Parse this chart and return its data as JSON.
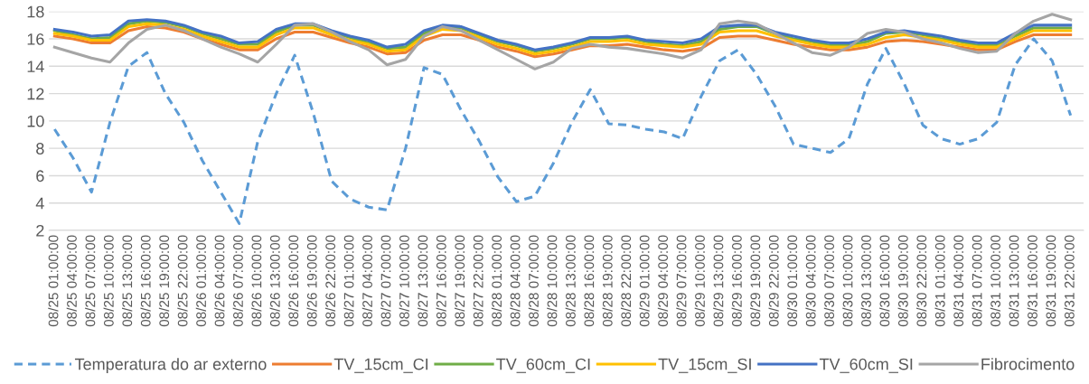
{
  "chart_data": {
    "type": "line",
    "categories": [
      "08/25 01:00:00",
      "08/25 04:00:00",
      "08/25 07:00:00",
      "08/25 10:00:00",
      "08/25 13:00:00",
      "08/25 16:00:00",
      "08/25 19:00:00",
      "08/25 22:00:00",
      "08/26 01:00:00",
      "08/26 04:00:00",
      "08/26 07:00:00",
      "08/26 10:00:00",
      "08/26 13:00:00",
      "08/26 16:00:00",
      "08/26 19:00:00",
      "08/26 22:00:00",
      "08/27 01:00:00",
      "08/27 04:00:00",
      "08/27 07:00:00",
      "08/27 10:00:00",
      "08/27 13:00:00",
      "08/27 16:00:00",
      "08/27 19:00:00",
      "08/27 22:00:00",
      "08/28 01:00:00",
      "08/28 04:00:00",
      "08/28 07:00:00",
      "08/28 10:00:00",
      "08/28 13:00:00",
      "08/28 16:00:00",
      "08/28 19:00:00",
      "08/28 22:00:00",
      "08/29 01:00:00",
      "08/29 04:00:00",
      "08/29 07:00:00",
      "08/29 10:00:00",
      "08/29 13:00:00",
      "08/29 16:00:00",
      "08/29 19:00:00",
      "08/29 22:00:00",
      "08/30 01:00:00",
      "08/30 04:00:00",
      "08/30 07:00:00",
      "08/30 10:00:00",
      "08/30 13:00:00",
      "08/30 16:00:00",
      "08/30 19:00:00",
      "08/30 22:00:00",
      "08/31 01:00:00",
      "08/31 04:00:00",
      "08/31 07:00:00",
      "08/31 10:00:00",
      "08/31 13:00:00",
      "08/31 16:00:00",
      "08/31 19:00:00",
      "08/31 22:00:00"
    ],
    "series": [
      {
        "name": "Temperatura do ar externo",
        "color": "#5b9bd5",
        "line_style": "dashed",
        "values": [
          9.4,
          7.3,
          4.8,
          9.9,
          14.0,
          15.0,
          12.0,
          9.9,
          7.1,
          4.8,
          2.5,
          8.5,
          12.0,
          14.8,
          10.6,
          5.6,
          4.3,
          3.7,
          3.5,
          8.0,
          13.9,
          13.4,
          10.8,
          8.5,
          5.9,
          4.1,
          4.5,
          6.9,
          9.9,
          12.3,
          9.8,
          9.7,
          9.4,
          9.2,
          8.7,
          11.8,
          14.4,
          15.2,
          13.4,
          11.1,
          8.3,
          8.0,
          7.7,
          8.7,
          12.7,
          15.3,
          12.7,
          9.7,
          8.7,
          8.3,
          8.7,
          9.9,
          14.1,
          16.0,
          14.4,
          10.4
        ]
      },
      {
        "name": "TV_15cm_CI",
        "color": "#ed7d31",
        "values": [
          16.2,
          16.0,
          15.7,
          15.7,
          16.6,
          16.9,
          16.8,
          16.5,
          16.0,
          15.6,
          15.2,
          15.2,
          16.0,
          16.5,
          16.5,
          16.1,
          15.7,
          15.4,
          14.9,
          15.0,
          15.9,
          16.3,
          16.3,
          15.9,
          15.4,
          15.1,
          14.7,
          14.9,
          15.2,
          15.5,
          15.5,
          15.6,
          15.4,
          15.2,
          15.1,
          15.3,
          16.1,
          16.2,
          16.2,
          15.9,
          15.6,
          15.4,
          15.2,
          15.2,
          15.4,
          15.8,
          15.9,
          15.8,
          15.6,
          15.4,
          15.2,
          15.2,
          15.8,
          16.3,
          16.3,
          16.3
        ]
      },
      {
        "name": "TV_60cm_CI",
        "color": "#70ad47",
        "values": [
          16.6,
          16.3,
          16.0,
          16.1,
          17.1,
          17.3,
          17.2,
          16.9,
          16.4,
          16.0,
          15.6,
          15.6,
          16.5,
          17.0,
          17.0,
          16.5,
          16.1,
          15.7,
          15.3,
          15.4,
          16.4,
          16.9,
          16.8,
          16.3,
          15.8,
          15.5,
          15.1,
          15.3,
          15.6,
          16.0,
          16.0,
          16.1,
          15.8,
          15.6,
          15.5,
          15.8,
          16.7,
          16.9,
          16.9,
          16.4,
          16.0,
          15.8,
          15.5,
          15.5,
          15.8,
          16.4,
          16.5,
          16.3,
          16.0,
          15.8,
          15.5,
          15.5,
          16.2,
          16.8,
          16.8,
          16.8
        ]
      },
      {
        "name": "TV_15cm_SI",
        "color": "#ffc000",
        "values": [
          16.4,
          16.2,
          15.9,
          15.9,
          16.9,
          17.1,
          17.0,
          16.7,
          16.2,
          15.8,
          15.4,
          15.4,
          16.3,
          16.8,
          16.8,
          16.3,
          15.9,
          15.6,
          15.1,
          15.2,
          16.2,
          16.7,
          16.6,
          16.1,
          15.6,
          15.3,
          14.9,
          15.1,
          15.4,
          15.8,
          15.8,
          15.9,
          15.6,
          15.5,
          15.4,
          15.6,
          16.5,
          16.6,
          16.6,
          16.2,
          15.9,
          15.6,
          15.4,
          15.4,
          15.6,
          16.1,
          16.3,
          16.1,
          15.9,
          15.6,
          15.4,
          15.4,
          16.0,
          16.6,
          16.6,
          16.6
        ]
      },
      {
        "name": "TV_60cm_SI",
        "color": "#4472c4",
        "values": [
          16.7,
          16.5,
          16.2,
          16.3,
          17.3,
          17.4,
          17.3,
          17.0,
          16.5,
          16.2,
          15.7,
          15.8,
          16.7,
          17.1,
          17.1,
          16.6,
          16.2,
          15.9,
          15.4,
          15.6,
          16.6,
          17.0,
          16.9,
          16.4,
          15.9,
          15.6,
          15.2,
          15.4,
          15.7,
          16.1,
          16.1,
          16.2,
          15.9,
          15.8,
          15.7,
          16.0,
          16.9,
          17.0,
          17.0,
          16.5,
          16.2,
          15.9,
          15.7,
          15.7,
          16.0,
          16.5,
          16.6,
          16.4,
          16.2,
          15.9,
          15.7,
          15.7,
          16.4,
          17.0,
          17.0,
          17.0
        ]
      },
      {
        "name": "Fibrocimento",
        "color": "#a5a5a5",
        "values": [
          15.4,
          15.0,
          14.6,
          14.3,
          15.7,
          16.7,
          17.0,
          16.6,
          16.0,
          15.4,
          14.9,
          14.3,
          15.6,
          17.0,
          17.1,
          16.5,
          15.8,
          15.2,
          14.1,
          14.5,
          16.2,
          16.9,
          16.6,
          15.9,
          15.2,
          14.5,
          13.8,
          14.3,
          15.3,
          15.6,
          15.4,
          15.3,
          15.1,
          14.9,
          14.6,
          15.2,
          17.1,
          17.3,
          17.1,
          16.4,
          15.7,
          15.0,
          14.8,
          15.4,
          16.4,
          16.7,
          16.5,
          16.0,
          15.7,
          15.3,
          15.0,
          15.1,
          16.4,
          17.3,
          17.8,
          17.4
        ]
      }
    ],
    "ylim": [
      2,
      18
    ],
    "yticks": [
      2,
      4,
      6,
      8,
      10,
      12,
      14,
      16,
      18
    ],
    "grid": "y",
    "legend": "bottom",
    "marker": "none"
  }
}
